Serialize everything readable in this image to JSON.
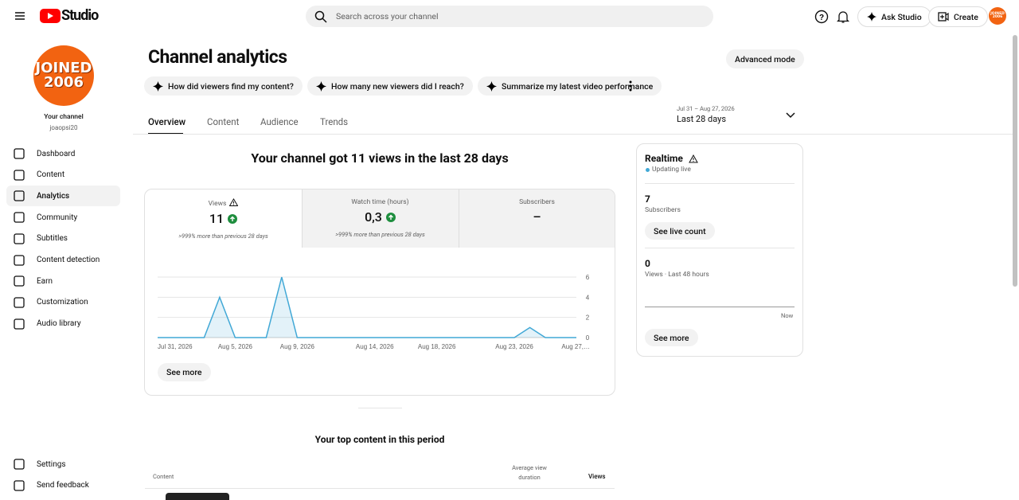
{
  "header": {
    "logo": "Studio",
    "search": "Search across your channel",
    "ask": "Ask Studio",
    "create": "Create",
    "avatar": [
      "JOINED",
      "2006"
    ]
  },
  "sidebar": {
    "avatar": [
      "JOINED",
      "2006"
    ],
    "channel_label": "Your channel",
    "handle": "joaopsi20",
    "nav": [
      "Dashboard",
      "Content",
      "Analytics",
      "Community",
      "Subtitles",
      "Content detection",
      "Earn",
      "Customization",
      "Audio library"
    ],
    "bottom_nav": [
      "Settings",
      "Send feedback"
    ]
  },
  "page": {
    "title": "Channel analytics",
    "advanced": "Advanced mode",
    "prompts": [
      "How did viewers find my content?",
      "How many new viewers did I reach?",
      "Summarize my latest video performance"
    ],
    "tabs": [
      "Overview",
      "Content",
      "Audience",
      "Trends"
    ],
    "date_range": "Jul 31 – Aug 27, 2026",
    "period": "Last 28 days",
    "headline": "Your channel got 11 views in the last 28 days"
  },
  "metrics": [
    {
      "label": "Views",
      "value": "11",
      "note": ">999% more than previous 28 days"
    },
    {
      "label": "Watch time (hours)",
      "value": "0,3",
      "note": ">999% more than previous 28 days"
    },
    {
      "label": "Subscribers",
      "value": "–"
    }
  ],
  "chart_data": {
    "type": "line",
    "color": "#41a8d6",
    "categories": [
      "Jul 31, 2026",
      null,
      null,
      null,
      null,
      "Aug 5, 2026",
      null,
      null,
      null,
      "Aug 9, 2026",
      null,
      null,
      null,
      null,
      "Aug 14, 2026",
      null,
      null,
      null,
      "Aug 18, 2026",
      null,
      null,
      null,
      null,
      "Aug 23, 2026",
      null,
      null,
      null,
      "Aug 27,…"
    ],
    "values": [
      0,
      0,
      0,
      0,
      4,
      0,
      0,
      0,
      6,
      0,
      0,
      0,
      0,
      0,
      0,
      0,
      0,
      0,
      0,
      0,
      0,
      0,
      0,
      0,
      1,
      0,
      0,
      0
    ],
    "ylim": [
      0,
      6
    ],
    "yticks": [
      0,
      2,
      4,
      6
    ],
    "grid": true
  },
  "chart_see_more": "See more",
  "realtime": {
    "title": "Realtime",
    "status": "Updating live",
    "subscribers": "7",
    "subscribers_label": "Subscribers",
    "live_count": "See live count",
    "views": "0",
    "views_label": "Views · Last 48 hours",
    "now": "Now",
    "see_more": "See more"
  },
  "top_content": {
    "title": "Your top content in this period",
    "columns": [
      "Content",
      "Average view duration",
      "Views"
    ]
  }
}
